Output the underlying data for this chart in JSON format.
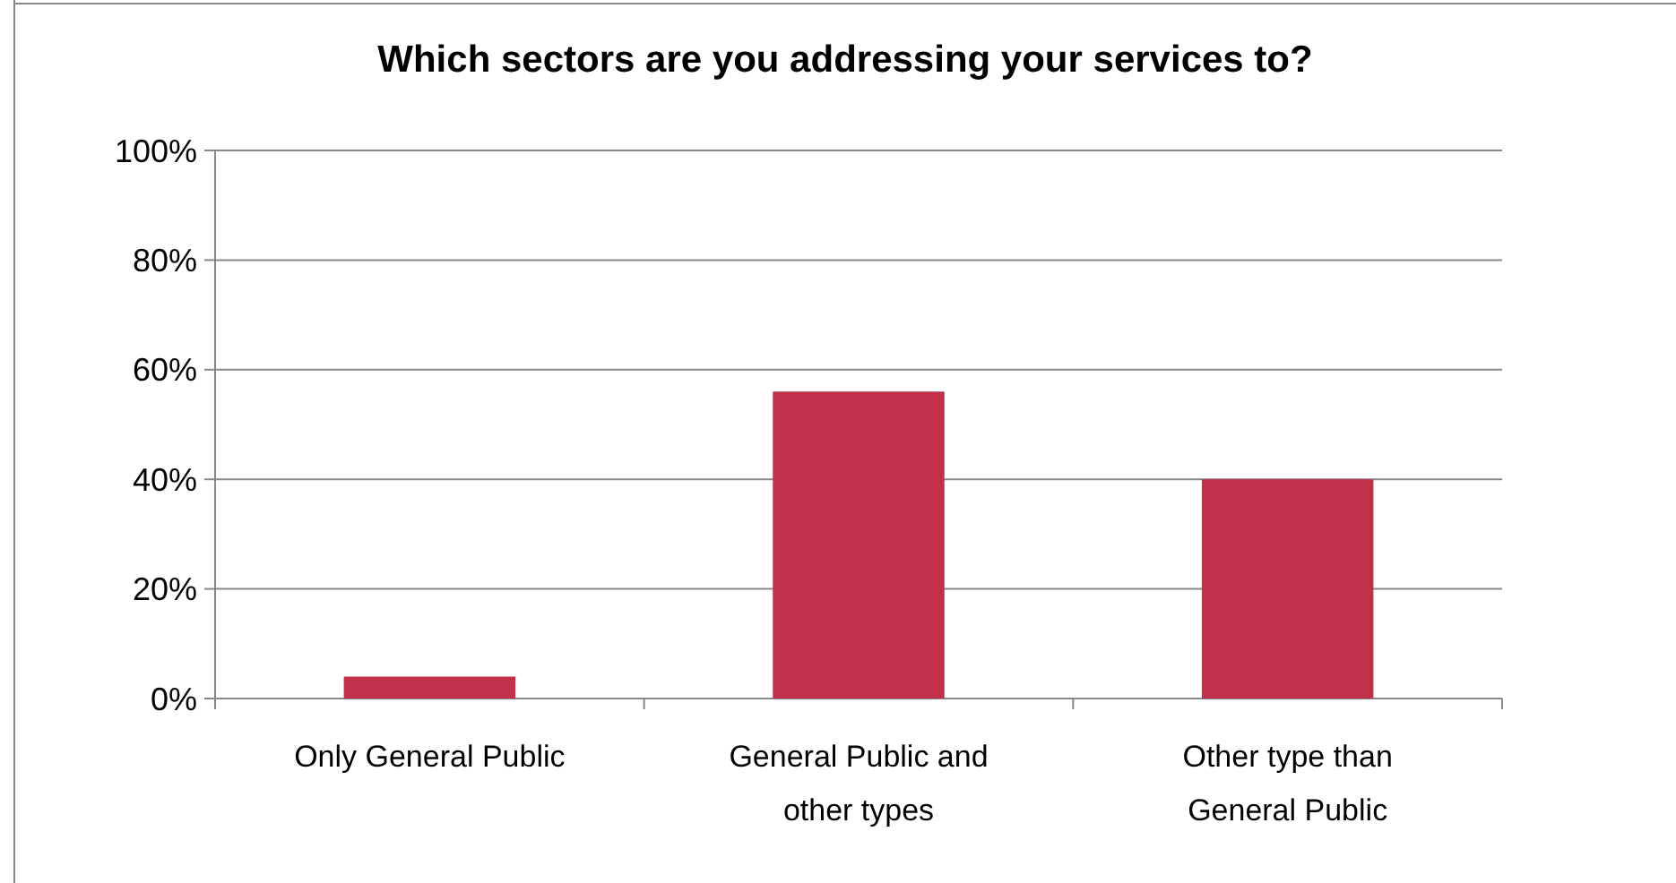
{
  "chart_data": {
    "type": "bar",
    "title": "Which sectors are you addressing your services to?",
    "categories": [
      "Only General Public",
      "General Public and other types",
      "Other type than General Public"
    ],
    "values": [
      4,
      56,
      40
    ],
    "color": "#c0304a",
    "ylim": [
      0,
      100
    ],
    "yticks": [
      {
        "value": 0,
        "label": "0%"
      },
      {
        "value": 20,
        "label": "20%"
      },
      {
        "value": 40,
        "label": "40%"
      },
      {
        "value": 60,
        "label": "60%"
      },
      {
        "value": 80,
        "label": "80%"
      },
      {
        "value": 100,
        "label": "100%"
      }
    ],
    "grid": "y"
  }
}
